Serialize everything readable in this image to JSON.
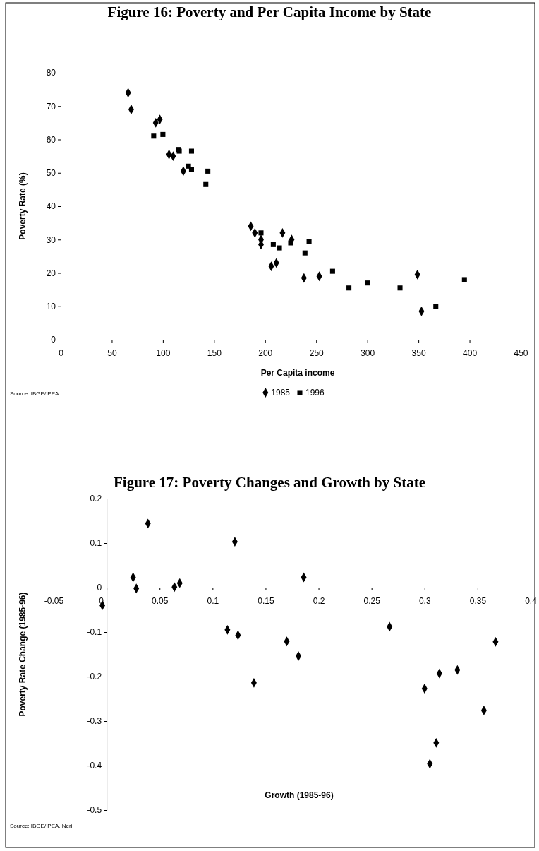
{
  "chart_data": [
    {
      "type": "scatter",
      "title": "Figure 16: Poverty and Per Capita Income by State",
      "xlabel": "Per Capita income",
      "ylabel": "Poverty Rate (%)",
      "xlim": [
        0,
        450
      ],
      "xticks": [
        0,
        50,
        100,
        150,
        200,
        250,
        300,
        350,
        400,
        450
      ],
      "ylim": [
        0,
        80
      ],
      "yticks": [
        0,
        10,
        20,
        30,
        40,
        50,
        60,
        70,
        80
      ],
      "grid": false,
      "legend": "bottom",
      "annotations": [
        "Source: IBGE/IPEA"
      ],
      "series": [
        {
          "name": "1985",
          "color": "#000000",
          "marker": "diamond",
          "x": [
            66,
            69,
            93,
            97,
            106,
            110,
            114,
            120,
            186,
            190,
            196,
            196,
            217,
            226,
            211,
            206,
            238,
            253,
            349,
            353
          ],
          "values": [
            74,
            69,
            65,
            66,
            55.5,
            55,
            null,
            50.5,
            34,
            32,
            30,
            28.5,
            32,
            30,
            23,
            22,
            18.5,
            19,
            19.5,
            8.5
          ]
        },
        {
          "name": "1996",
          "color": "#000000",
          "marker": "square",
          "x": [
            91,
            100,
            115,
            116,
            128,
            125,
            128,
            144,
            142,
            196,
            208,
            214,
            225,
            243,
            239,
            266,
            282,
            300,
            332,
            367,
            395
          ],
          "values": [
            61,
            61.5,
            57,
            56.5,
            56.5,
            52,
            51,
            50.5,
            46.5,
            32,
            28.5,
            27.5,
            29,
            29.5,
            26,
            20.5,
            15.5,
            17,
            15.5,
            10,
            18
          ]
        }
      ]
    },
    {
      "type": "scatter",
      "title": "Figure 17: Poverty Changes and Growth by State",
      "xlabel": "Growth (1985-96)",
      "ylabel": "Poverty Rate Change (1985-96)",
      "xlim": [
        -0.05,
        0.4
      ],
      "xticks": [
        -0.05,
        0,
        0.05,
        0.1,
        0.15,
        0.2,
        0.25,
        0.3,
        0.35,
        0.4
      ],
      "ylim": [
        -0.5,
        0.2
      ],
      "yticks": [
        -0.5,
        -0.4,
        -0.3,
        -0.2,
        -0.1,
        0,
        0.1,
        0.2
      ],
      "grid": false,
      "legend": false,
      "annotations": [
        "Source: IBGE/IPEA, Neri"
      ],
      "series": [
        {
          "color": "#000000",
          "marker": "diamond",
          "x": [
            0.039,
            0.025,
            0.028,
            0.064,
            0.069,
            0.121,
            0.186,
            -0.004,
            0.114,
            0.124,
            0.139,
            0.17,
            0.181,
            0.267,
            0.3,
            0.314,
            0.331,
            0.367,
            0.356,
            0.311,
            0.305
          ],
          "values": [
            0.144,
            0.023,
            -0.002,
            0.001,
            0.01,
            0.103,
            0.023,
            -0.04,
            -0.095,
            -0.107,
            -0.214,
            -0.121,
            -0.154,
            -0.088,
            -0.227,
            -0.193,
            -0.185,
            -0.122,
            -0.276,
            -0.349,
            -0.396
          ]
        }
      ]
    }
  ]
}
